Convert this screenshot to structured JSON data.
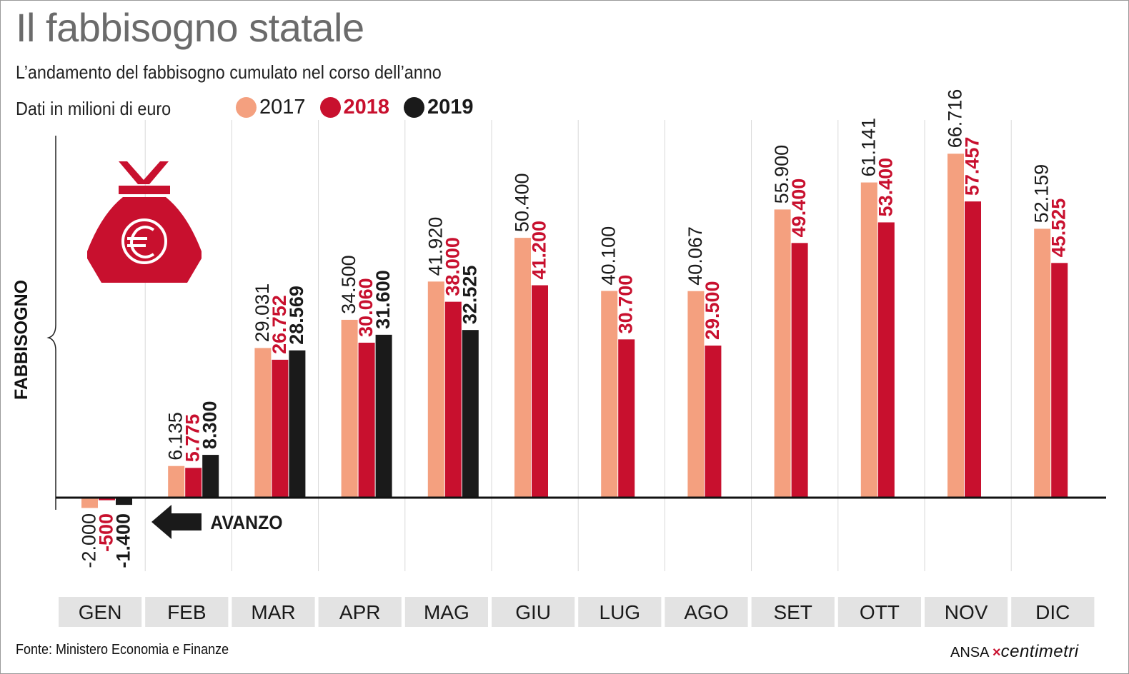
{
  "header": {
    "title": "Il fabbisogno statale",
    "subtitle": "L’andamento del fabbisogno cumulato nel corso dell’anno",
    "units": "Dati in milioni di euro"
  },
  "legend": [
    {
      "label": "2017",
      "color": "#f4a07f"
    },
    {
      "label": "2018",
      "color": "#c8102e"
    },
    {
      "label": "2019",
      "color": "#1a1a1a"
    }
  ],
  "annotations": {
    "ylabel": "FABBISOGNO",
    "avanzo": "AVANZO",
    "icon": "money-bag-euro-icon"
  },
  "footer": {
    "source": "Fonte: Ministero Economia e Finanze",
    "credit_ansa": "ANSA",
    "credit_brand": "centimetri"
  },
  "chart_data": {
    "type": "bar",
    "categories": [
      "GEN",
      "FEB",
      "MAR",
      "APR",
      "MAG",
      "GIU",
      "LUG",
      "AGO",
      "SET",
      "OTT",
      "NOV",
      "DIC"
    ],
    "series": [
      {
        "name": "2017",
        "color": "#f4a07f",
        "label_color": "#1a1a1a",
        "label_bold": false,
        "values": [
          -2000,
          6135,
          29031,
          34500,
          41920,
          50400,
          40100,
          40067,
          55900,
          61141,
          66716,
          52159
        ],
        "labels": [
          "-2.000",
          "6.135",
          "29.031",
          "34.500",
          "41.920",
          "50.400",
          "40.100",
          "40.067",
          "55.900",
          "61.141",
          "66.716",
          "52.159"
        ]
      },
      {
        "name": "2018",
        "color": "#c8102e",
        "label_color": "#c8102e",
        "label_bold": true,
        "values": [
          -500,
          5775,
          26752,
          30060,
          38000,
          41200,
          30700,
          29500,
          49400,
          53400,
          57457,
          45525
        ],
        "labels": [
          "-500",
          "5.775",
          "26.752",
          "30.060",
          "38.000",
          "41.200",
          "30.700",
          "29.500",
          "49.400",
          "53.400",
          "57.457",
          "45.525"
        ]
      },
      {
        "name": "2019",
        "color": "#1a1a1a",
        "label_color": "#1a1a1a",
        "label_bold": true,
        "values": [
          -1400,
          8300,
          28569,
          31600,
          32525,
          null,
          null,
          null,
          null,
          null,
          null,
          null
        ],
        "labels": [
          "-1.400",
          "8.300",
          "28.569",
          "31.600",
          "32.525",
          "",
          "",
          "",
          "",
          "",
          "",
          ""
        ]
      }
    ],
    "ylabel": "FABBISOGNO",
    "ylim": [
      -2000,
      66716
    ],
    "grid": "vertical separators",
    "legend_position": "top"
  }
}
